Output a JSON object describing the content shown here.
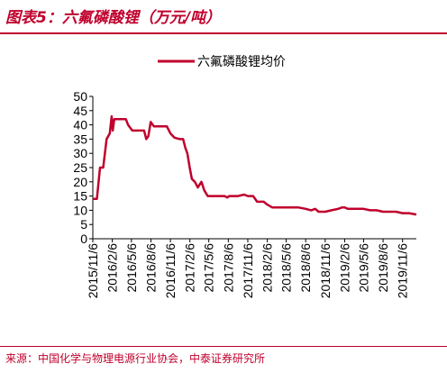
{
  "header": {
    "title": "图表5：六氟磷酸锂（万元/吨）"
  },
  "footer": {
    "source": "来源：中国化学与物理电源行业协会，中泰证券研究所"
  },
  "colors": {
    "accent": "#c0002c",
    "series": "#c0002c"
  },
  "chart_data": {
    "type": "line",
    "title": "",
    "xlabel": "",
    "ylabel": "",
    "ylim": [
      0,
      50
    ],
    "yticks": [
      0,
      5,
      10,
      15,
      20,
      25,
      30,
      35,
      40,
      45,
      50
    ],
    "xlim": [
      "2015-11-06",
      "2020-01-10"
    ],
    "xticks": [
      "2015/11/6",
      "2016/2/6",
      "2016/5/6",
      "2016/8/6",
      "2016/11/6",
      "2017/2/6",
      "2017/5/6",
      "2017/8/6",
      "2017/11/6",
      "2018/2/6",
      "2018/5/6",
      "2018/8/6",
      "2018/11/6",
      "2019/2/6",
      "2019/5/6",
      "2019/8/6",
      "2019/11/6"
    ],
    "grid": false,
    "legend": "top",
    "series": [
      {
        "name": "六氟磷酸锂均价",
        "points": [
          [
            "2015-11-06",
            14
          ],
          [
            "2015-11-25",
            14
          ],
          [
            "2015-12-10",
            25
          ],
          [
            "2015-12-25",
            25
          ],
          [
            "2016-01-10",
            35
          ],
          [
            "2016-01-25",
            37
          ],
          [
            "2016-02-03",
            43
          ],
          [
            "2016-02-08",
            38
          ],
          [
            "2016-02-15",
            42
          ],
          [
            "2016-03-15",
            42
          ],
          [
            "2016-04-10",
            42
          ],
          [
            "2016-04-20",
            40
          ],
          [
            "2016-05-10",
            38
          ],
          [
            "2016-05-30",
            38
          ],
          [
            "2016-06-20",
            38
          ],
          [
            "2016-07-05",
            38
          ],
          [
            "2016-07-15",
            35
          ],
          [
            "2016-07-25",
            36
          ],
          [
            "2016-08-05",
            41
          ],
          [
            "2016-08-20",
            39.5
          ],
          [
            "2016-09-20",
            39.5
          ],
          [
            "2016-10-20",
            39.5
          ],
          [
            "2016-11-06",
            37
          ],
          [
            "2016-11-25",
            35.5
          ],
          [
            "2016-12-20",
            35
          ],
          [
            "2017-01-05",
            35
          ],
          [
            "2017-01-15",
            32
          ],
          [
            "2017-01-25",
            30
          ],
          [
            "2017-02-05",
            25
          ],
          [
            "2017-02-15",
            21
          ],
          [
            "2017-03-01",
            20
          ],
          [
            "2017-03-15",
            18
          ],
          [
            "2017-04-01",
            20
          ],
          [
            "2017-04-15",
            17
          ],
          [
            "2017-05-01",
            15
          ],
          [
            "2017-06-15",
            15
          ],
          [
            "2017-07-20",
            15
          ],
          [
            "2017-08-01",
            14.5
          ],
          [
            "2017-08-10",
            15
          ],
          [
            "2017-09-20",
            15
          ],
          [
            "2017-10-20",
            15.5
          ],
          [
            "2017-11-06",
            15
          ],
          [
            "2017-12-01",
            15
          ],
          [
            "2017-12-20",
            13
          ],
          [
            "2018-01-20",
            13
          ],
          [
            "2018-02-06",
            12
          ],
          [
            "2018-03-01",
            11
          ],
          [
            "2018-04-01",
            11
          ],
          [
            "2018-05-06",
            11
          ],
          [
            "2018-06-06",
            11
          ],
          [
            "2018-07-01",
            11
          ],
          [
            "2018-08-06",
            10.5
          ],
          [
            "2018-09-01",
            10
          ],
          [
            "2018-09-20",
            10.5
          ],
          [
            "2018-10-06",
            9.5
          ],
          [
            "2018-11-06",
            9.5
          ],
          [
            "2018-12-06",
            10
          ],
          [
            "2019-01-06",
            10.5
          ],
          [
            "2019-01-25",
            11
          ],
          [
            "2019-02-06",
            11
          ],
          [
            "2019-02-20",
            10.5
          ],
          [
            "2019-03-20",
            10.5
          ],
          [
            "2019-05-06",
            10.5
          ],
          [
            "2019-06-06",
            10
          ],
          [
            "2019-07-06",
            10
          ],
          [
            "2019-08-06",
            9.5
          ],
          [
            "2019-09-06",
            9.5
          ],
          [
            "2019-10-06",
            9.5
          ],
          [
            "2019-11-06",
            9
          ],
          [
            "2019-12-06",
            9
          ],
          [
            "2020-01-10",
            8.5
          ]
        ]
      }
    ]
  }
}
